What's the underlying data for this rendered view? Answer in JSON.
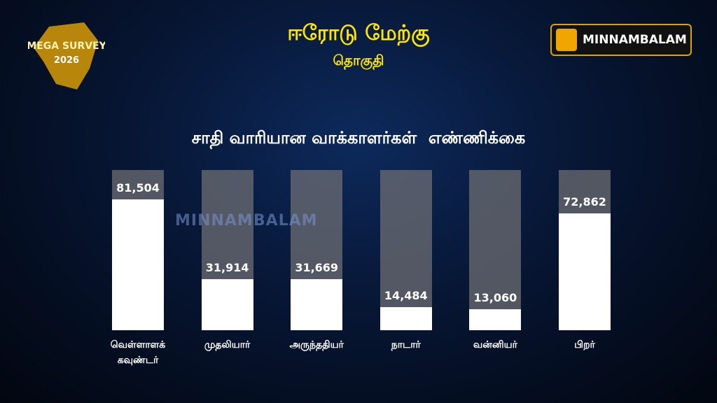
{
  "logo": {
    "name": "MEGA SURVEY",
    "year": "2026"
  },
  "brand": "MINNAMBALAM",
  "watermark": "MINNAMBALAM",
  "chart_data": {
    "type": "bar",
    "title": "ஈரோடு மேற்கு",
    "subtitle": "தொகுதி",
    "chart_title": "சாதி வாரியான வாக்காளர்கள்  எண்ணிக்கை",
    "categories": [
      "வெள்ளாளக் கவுண்டர்",
      "முதலியார்",
      "அருந்ததியர்",
      "நாடார்",
      "வன்னியர்",
      "பிறர்"
    ],
    "values": [
      81504,
      31914,
      31669,
      14484,
      13060,
      72862
    ],
    "value_labels": [
      "81,504",
      "31,914",
      "31,669",
      "14,484",
      "13,060",
      "72,862"
    ],
    "color": "#ffffff",
    "ylim": [
      0,
      100000
    ]
  }
}
